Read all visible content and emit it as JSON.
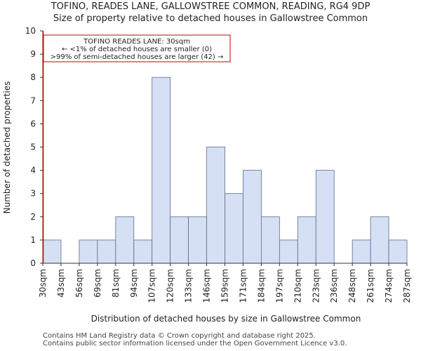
{
  "title_lines": [
    "TOFINO, READES LANE, GALLOWSTREE COMMON, READING, RG4 9DP",
    "Size of property relative to detached houses in Gallowstree Common"
  ],
  "footer_lines": [
    "Contains HM Land Registry data © Crown copyright and database right 2025.",
    "Contains public sector information licensed under the Open Government Licence v3.0."
  ],
  "chart_data": {
    "type": "bar",
    "title": "TOFINO, READES LANE, GALLOWSTREE COMMON, READING, RG4 9DP",
    "subtitle": "Size of property relative to detached houses in Gallowstree Common",
    "xlabel": "Distribution of detached houses by size in Gallowstree Common",
    "ylabel": "Number of detached properties",
    "ylim": [
      0,
      10
    ],
    "yticks": [
      0,
      1,
      2,
      3,
      4,
      5,
      6,
      7,
      8,
      9,
      10
    ],
    "bin_edges": [
      "30sqm",
      "43sqm",
      "56sqm",
      "69sqm",
      "81sqm",
      "94sqm",
      "107sqm",
      "120sqm",
      "133sqm",
      "146sqm",
      "159sqm",
      "171sqm",
      "184sqm",
      "197sqm",
      "210sqm",
      "223sqm",
      "236sqm",
      "248sqm",
      "261sqm",
      "274sqm",
      "287sqm"
    ],
    "values": [
      1,
      0,
      1,
      1,
      2,
      1,
      8,
      2,
      2,
      5,
      3,
      4,
      2,
      1,
      2,
      4,
      0,
      1,
      2,
      1
    ],
    "bar_color": "#d6e0f5",
    "bar_edge_color": "#5a6a8a",
    "marker": {
      "value": "30sqm",
      "color": "#cc0000"
    },
    "annotation": {
      "lines": [
        "TOFINO READES LANE: 30sqm",
        "← <1% of detached houses are smaller (0)",
        ">99% of semi-detached houses are larger (42) →"
      ],
      "border_color": "#cc0000"
    },
    "grid": false
  }
}
